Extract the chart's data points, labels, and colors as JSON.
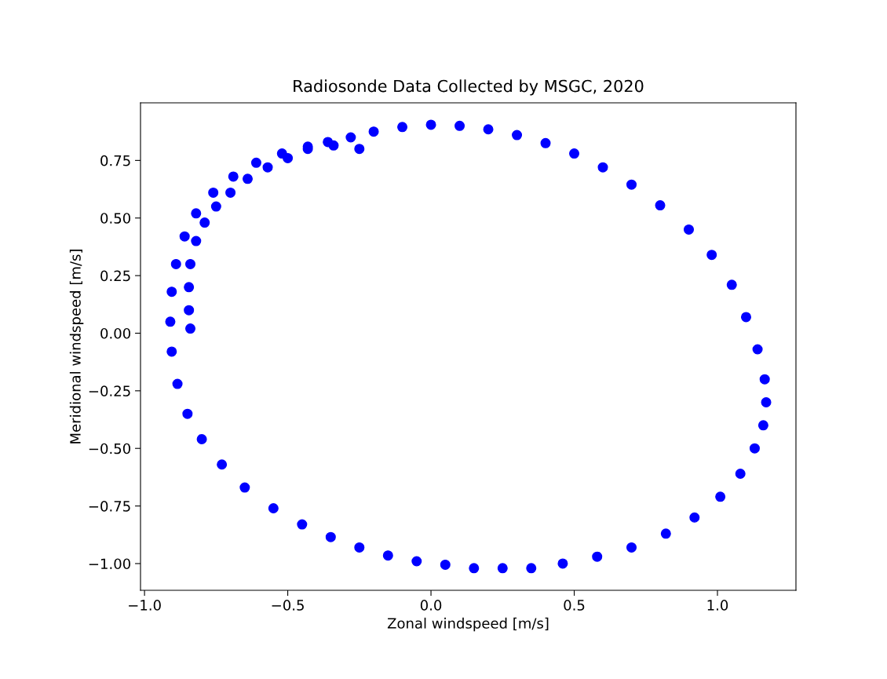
{
  "chart_data": {
    "type": "scatter",
    "title": "Radiosonde Data Collected by MSGC, 2020",
    "xlabel": "Zonal windspeed [m/s]",
    "ylabel": "Meridional windspeed [m/s]",
    "series": [
      {
        "color": "#0000ff",
        "marker": "circle",
        "x": [
          -0.84,
          -0.845,
          -0.845,
          -0.84,
          -0.82,
          -0.79,
          -0.75,
          -0.7,
          -0.64,
          -0.57,
          -0.5,
          -0.43,
          -0.36,
          -0.28,
          -0.2,
          -0.1,
          0.0,
          0.1,
          0.2,
          0.3,
          0.4,
          0.5,
          0.6,
          0.7,
          0.8,
          0.9,
          0.98,
          1.05,
          1.1,
          1.14,
          1.165,
          1.17,
          1.16,
          1.13,
          1.08,
          1.01,
          0.92,
          0.82,
          0.7,
          0.58,
          0.46,
          0.35,
          0.25,
          0.15,
          0.05,
          -0.05,
          -0.15,
          -0.25,
          -0.35,
          -0.45,
          -0.55,
          -0.65,
          -0.73,
          -0.8,
          -0.85,
          -0.885,
          -0.905,
          -0.91,
          -0.905,
          -0.89,
          -0.86,
          -0.82,
          -0.76,
          -0.69,
          -0.61,
          -0.52,
          -0.43,
          -0.34,
          -0.25
        ],
        "values": [
          0.02,
          0.1,
          0.2,
          0.3,
          0.4,
          0.48,
          0.55,
          0.61,
          0.67,
          0.72,
          0.76,
          0.8,
          0.83,
          0.85,
          0.875,
          0.895,
          0.905,
          0.9,
          0.885,
          0.86,
          0.825,
          0.78,
          0.72,
          0.645,
          0.555,
          0.45,
          0.34,
          0.21,
          0.07,
          -0.07,
          -0.2,
          -0.3,
          -0.4,
          -0.5,
          -0.61,
          -0.71,
          -0.8,
          -0.87,
          -0.93,
          -0.97,
          -1.0,
          -1.02,
          -1.02,
          -1.02,
          -1.005,
          -0.99,
          -0.965,
          -0.93,
          -0.885,
          -0.83,
          -0.76,
          -0.67,
          -0.57,
          -0.46,
          -0.35,
          -0.22,
          -0.08,
          0.05,
          0.18,
          0.3,
          0.42,
          0.52,
          0.61,
          0.68,
          0.74,
          0.78,
          0.81,
          0.815,
          0.8
        ]
      }
    ],
    "xlim": [
      -1.014,
      1.274
    ],
    "ylim": [
      -1.116,
      1.0
    ],
    "xticks": [
      {
        "value": -1.0,
        "label": "−1.0"
      },
      {
        "value": -0.5,
        "label": "−0.5"
      },
      {
        "value": 0.0,
        "label": "0.0"
      },
      {
        "value": 0.5,
        "label": "0.5"
      },
      {
        "value": 1.0,
        "label": "1.0"
      }
    ],
    "yticks": [
      {
        "value": -1.0,
        "label": "−1.00"
      },
      {
        "value": -0.75,
        "label": "−0.75"
      },
      {
        "value": -0.5,
        "label": "−0.50"
      },
      {
        "value": -0.25,
        "label": "−0.25"
      },
      {
        "value": 0.0,
        "label": "0.00"
      },
      {
        "value": 0.25,
        "label": "0.25"
      },
      {
        "value": 0.5,
        "label": "0.50"
      },
      {
        "value": 0.75,
        "label": "0.75"
      }
    ],
    "grid": false,
    "legend": false
  }
}
